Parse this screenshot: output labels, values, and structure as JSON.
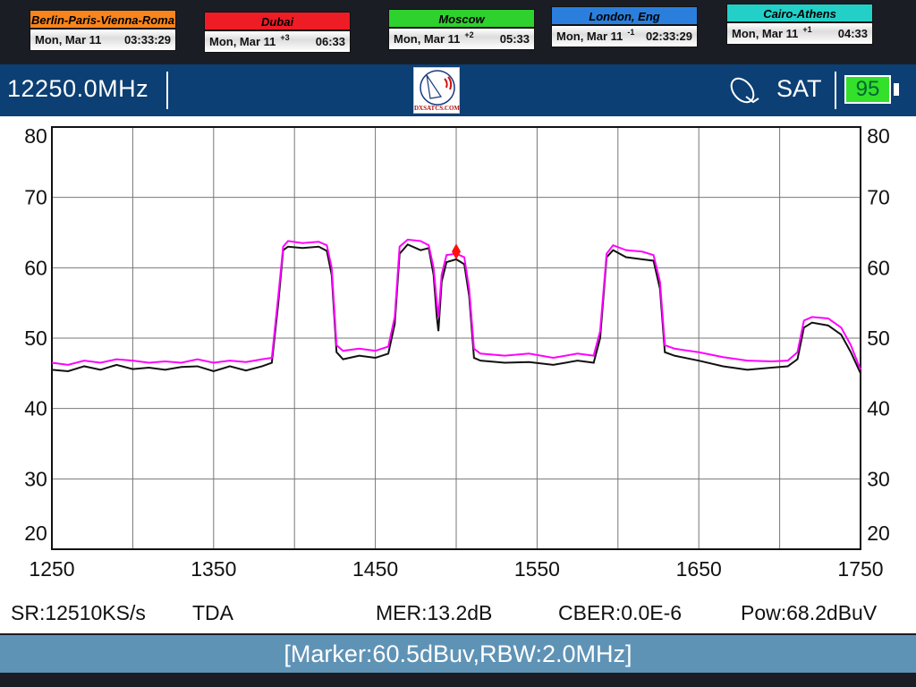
{
  "clocks": [
    {
      "city": "Berlin-Paris-Vienna-Roma",
      "date": "Mon, Mar 11",
      "offset": "",
      "time": "03:33:29",
      "color": "#f7841d"
    },
    {
      "city": "Dubai",
      "date": "Mon, Mar 11",
      "offset": "+3",
      "time": "06:33",
      "color": "#ee1c25"
    },
    {
      "city": "Moscow",
      "date": "Mon, Mar 11",
      "offset": "+2",
      "time": "05:33",
      "color": "#2ed12e"
    },
    {
      "city": "London, Eng",
      "date": "Mon, Mar 11",
      "offset": "-1",
      "time": "02:33:29",
      "color": "#2a7fdd"
    },
    {
      "city": "Cairo-Athens",
      "date": "Mon, Mar 11",
      "offset": "+1",
      "time": "04:33",
      "color": "#22d0c8"
    }
  ],
  "header": {
    "frequency": "12250.0MHz",
    "logo_text": "DXSATCS.COM",
    "mode": "SAT",
    "battery": "95",
    "satellite_icon": "satellite-dish-icon"
  },
  "info": {
    "sr": "SR:12510KS/s",
    "mode": "TDA",
    "mer": "MER:13.2dB",
    "cber": "CBER:0.0E-6",
    "pow": "Pow:68.2dBuV"
  },
  "footer": {
    "marker": "[Marker:60.5dBuv,RBW:2.0MHz]"
  },
  "chart_data": {
    "type": "line",
    "xlim": [
      1250,
      1750
    ],
    "ylim": [
      20,
      80
    ],
    "x_ticks": [
      "1250",
      "1350",
      "1450",
      "1550",
      "1650",
      "1750"
    ],
    "y_ticks": [
      "80",
      "70",
      "60",
      "50",
      "40",
      "30",
      "20"
    ],
    "grid": true,
    "marker": {
      "x": 1500,
      "y": 60.5,
      "color": "#ff1010"
    },
    "series": [
      {
        "color": "#ff00ff",
        "x": [
          1250,
          1260,
          1270,
          1280,
          1290,
          1300,
          1310,
          1320,
          1330,
          1340,
          1350,
          1360,
          1370,
          1380,
          1386,
          1390,
          1393,
          1396,
          1405,
          1415,
          1420,
          1423,
          1426,
          1430,
          1440,
          1450,
          1458,
          1462,
          1465,
          1470,
          1478,
          1483,
          1486,
          1488,
          1489,
          1491,
          1494,
          1500,
          1505,
          1508,
          1511,
          1515,
          1530,
          1545,
          1560,
          1575,
          1585,
          1589,
          1593,
          1597,
          1605,
          1615,
          1622,
          1626,
          1629,
          1635,
          1650,
          1665,
          1680,
          1695,
          1705,
          1711,
          1715,
          1720,
          1730,
          1738,
          1744,
          1750
        ],
        "y": [
          46.5,
          46.2,
          46.8,
          46.5,
          47,
          46.8,
          46.5,
          46.7,
          46.5,
          47,
          46.5,
          46.8,
          46.6,
          47,
          47.2,
          56,
          63,
          63.8,
          63.5,
          63.7,
          63.2,
          60,
          49,
          48.2,
          48.5,
          48.2,
          48.8,
          53,
          63,
          64,
          63.8,
          63.2,
          60,
          55,
          53,
          59,
          61.8,
          62,
          61.5,
          57,
          48.5,
          47.8,
          47.5,
          47.8,
          47.2,
          47.8,
          47.5,
          51,
          62,
          63.2,
          62.5,
          62.3,
          61.8,
          58,
          49,
          48.5,
          48,
          47.3,
          46.8,
          46.7,
          46.8,
          48,
          52.5,
          53,
          52.8,
          51.5,
          49,
          45.5
        ]
      },
      {
        "color": "#111111",
        "x": [
          1250,
          1260,
          1270,
          1280,
          1290,
          1300,
          1310,
          1320,
          1330,
          1340,
          1350,
          1360,
          1370,
          1380,
          1386,
          1390,
          1393,
          1396,
          1405,
          1415,
          1420,
          1423,
          1426,
          1430,
          1440,
          1450,
          1458,
          1462,
          1465,
          1470,
          1478,
          1483,
          1486,
          1488,
          1489,
          1491,
          1494,
          1500,
          1505,
          1508,
          1511,
          1515,
          1530,
          1545,
          1560,
          1575,
          1585,
          1589,
          1593,
          1597,
          1605,
          1615,
          1622,
          1626,
          1629,
          1635,
          1650,
          1665,
          1680,
          1695,
          1705,
          1711,
          1715,
          1720,
          1730,
          1738,
          1744,
          1750
        ],
        "y": [
          45.5,
          45.3,
          46,
          45.5,
          46.2,
          45.6,
          45.8,
          45.5,
          45.9,
          46,
          45.3,
          46,
          45.4,
          46,
          46.5,
          55,
          62.5,
          63,
          62.8,
          63,
          62.4,
          59,
          48,
          47,
          47.5,
          47.2,
          47.8,
          52,
          62,
          63.3,
          62.5,
          62.8,
          59,
          53,
          51,
          58,
          60.8,
          61.2,
          60.5,
          56,
          47.2,
          46.8,
          46.5,
          46.6,
          46.2,
          46.8,
          46.5,
          50,
          61.5,
          62.5,
          61.5,
          61.2,
          61,
          57,
          48,
          47.5,
          46.8,
          46,
          45.5,
          45.8,
          46,
          47,
          51.5,
          52.2,
          51.8,
          50.5,
          48,
          45
        ]
      }
    ]
  }
}
